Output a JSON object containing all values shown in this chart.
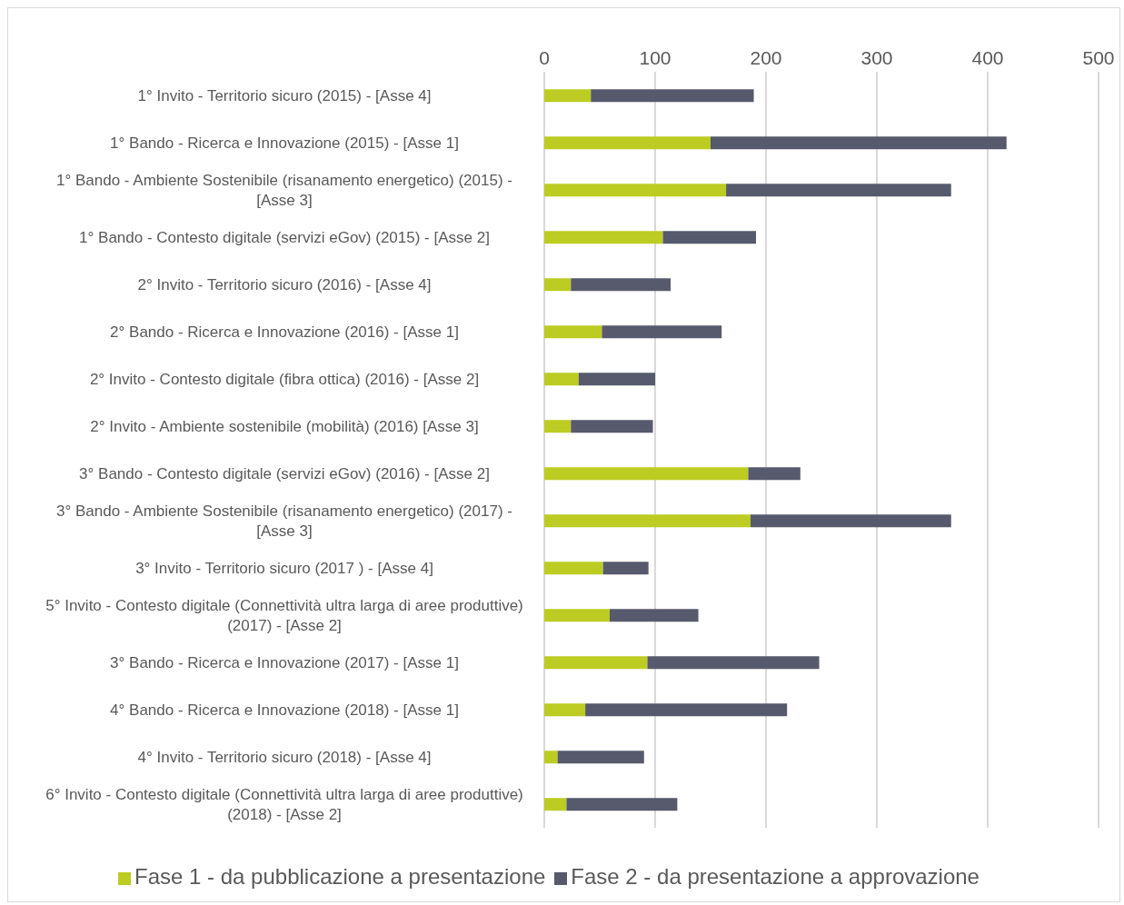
{
  "chart_data": {
    "type": "bar",
    "orientation": "horizontal",
    "stacked": true,
    "categories": [
      "1° Invito - Territorio sicuro (2015) - [Asse 4]",
      "1° Bando - Ricerca e Innovazione (2015) - [Asse 1]",
      "1° Bando - Ambiente Sostenibile (risanamento energetico) (2015) - [Asse 3]",
      "1° Bando - Contesto digitale (servizi eGov) (2015) - [Asse 2]",
      "2° Invito - Territorio sicuro (2016) - [Asse 4]",
      "2° Bando - Ricerca e Innovazione (2016) - [Asse 1]",
      "2° Invito - Contesto digitale (fibra ottica) (2016) - [Asse 2]",
      "2° Invito - Ambiente sostenibile (mobilità) (2016) [Asse 3]",
      "3° Bando - Contesto digitale (servizi eGov) (2016) - [Asse 2]",
      "3° Bando - Ambiente Sostenibile (risanamento energetico) (2017) - [Asse 3]",
      "3° Invito - Territorio sicuro (2017 ) - [Asse 4]",
      "5° Invito - Contesto digitale (Connettività ultra larga di aree produttive) (2017) - [Asse 2]",
      "3° Bando - Ricerca e Innovazione (2017) - [Asse 1]",
      "4° Bando - Ricerca e Innovazione (2018) - [Asse 1]",
      "4° Invito - Territorio sicuro (2018) - [Asse 4]",
      "6° Invito - Contesto digitale (Connettività ultra larga di aree produttive) (2018) - [Asse 2]"
    ],
    "series": [
      {
        "name": "Fase 1 - da pubblicazione a presentazione",
        "color": "#bccc22",
        "values": [
          42,
          150,
          164,
          107,
          24,
          52,
          31,
          24,
          184,
          186,
          53,
          59,
          93,
          37,
          12,
          20
        ]
      },
      {
        "name": "Fase 2 - da presentazione a approvazione",
        "color": "#575a6c",
        "values": [
          147,
          267,
          203,
          84,
          90,
          108,
          69,
          74,
          47,
          181,
          41,
          80,
          155,
          182,
          78,
          100
        ]
      }
    ],
    "xlim": [
      0,
      500
    ],
    "xticks": [
      0,
      100,
      200,
      300,
      400,
      500
    ],
    "grid": "x",
    "legend": "bottom"
  }
}
